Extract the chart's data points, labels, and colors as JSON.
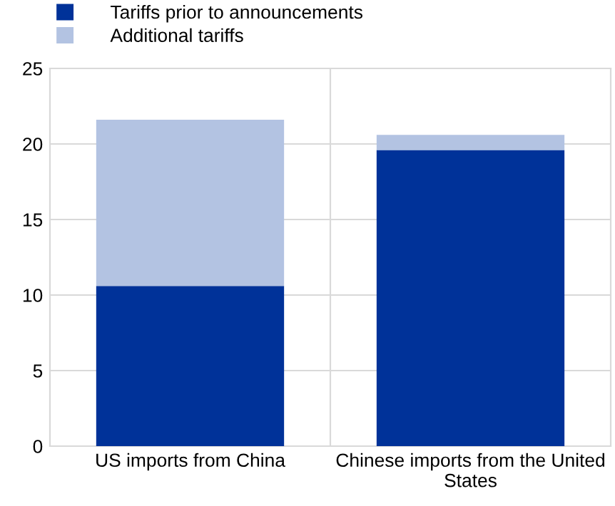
{
  "chart_data": {
    "type": "bar",
    "stacked": true,
    "categories": [
      "US imports from China",
      "Chinese imports from the United States"
    ],
    "series": [
      {
        "name": "Tariffs prior to announcements",
        "color": "#003299",
        "values": [
          10.6,
          19.6
        ]
      },
      {
        "name": "Additional tariffs",
        "color": "#b3c3e2",
        "values": [
          11.0,
          1.0
        ]
      }
    ],
    "ylim": [
      0,
      25
    ],
    "yticks": [
      0,
      5,
      10,
      15,
      20,
      25
    ],
    "grid": true,
    "legend": "top left"
  }
}
